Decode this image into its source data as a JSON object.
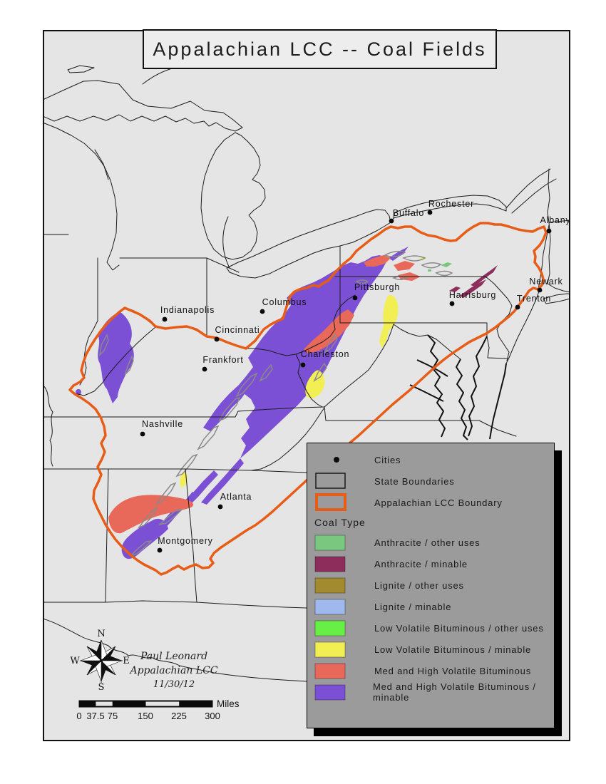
{
  "title": "Appalachian LCC -- Coal Fields",
  "colors": {
    "land": "#E5E5E5",
    "legend_bg": "#9B9B9B",
    "lcc_boundary": "#E75D18",
    "state_line": "#1c1c1c",
    "gray_patch_outline": "#8a8a8a"
  },
  "legend": {
    "cities_label": "Cities",
    "state_boundaries_label": "State Boundaries",
    "lcc_boundary_label": "Appalachian LCC Boundary",
    "coal_type_header": "Coal Type",
    "coal_types": [
      {
        "label": "Anthracite / other uses",
        "color": "#7AC77F"
      },
      {
        "label": "Anthracite / minable",
        "color": "#8C2D5B"
      },
      {
        "label": "Lignite / other uses",
        "color": "#A18A2F"
      },
      {
        "label": "Lignite / minable",
        "color": "#9FB9EE"
      },
      {
        "label": "Low Volatile Bituminous / other uses",
        "color": "#68EF46"
      },
      {
        "label": "Low Volatile Bituminous / minable",
        "color": "#F2EF55"
      },
      {
        "label": "Med and High Volatile Bituminous",
        "color": "#E8695A"
      },
      {
        "label": "Med and High Volatile Bituminous / minable",
        "color": "#7B50D4"
      }
    ]
  },
  "credits": {
    "line1": "Paul Leonard",
    "line2": "Appalachian LCC",
    "line3": "11/30/12"
  },
  "scale_bar": {
    "ticks": [
      "0",
      "37.5",
      "75",
      "150",
      "225",
      "300"
    ],
    "unit": "Miles"
  },
  "compass": {
    "north": "N",
    "south": "S",
    "east": "E",
    "west": "W"
  },
  "cities": [
    {
      "name": "Buffalo",
      "dot": [
        549,
        310
      ],
      "label": [
        573,
        303
      ]
    },
    {
      "name": "Rochester",
      "dot": [
        603,
        298
      ],
      "label": [
        633,
        290
      ]
    },
    {
      "name": "Albany",
      "dot": [
        770,
        324
      ],
      "label": [
        779,
        313
      ]
    },
    {
      "name": "Newark",
      "dot": [
        757,
        407
      ],
      "label": [
        766,
        399
      ]
    },
    {
      "name": "Trenton",
      "dot": [
        726,
        431
      ],
      "label": [
        749,
        423
      ]
    },
    {
      "name": "Pittsburgh",
      "dot": [
        498,
        418
      ],
      "label": [
        529,
        407
      ]
    },
    {
      "name": "Harrisburg",
      "dot": [
        634,
        426
      ],
      "label": [
        663,
        418
      ]
    },
    {
      "name": "Columbus",
      "dot": [
        368,
        437
      ],
      "label": [
        399,
        428
      ]
    },
    {
      "name": "Indianapolis",
      "dot": [
        231,
        448
      ],
      "label": [
        263,
        439
      ]
    },
    {
      "name": "Cincinnati",
      "dot": [
        304,
        476
      ],
      "label": [
        333,
        467
      ]
    },
    {
      "name": "Frankfort",
      "dot": [
        287,
        518
      ],
      "label": [
        313,
        509
      ]
    },
    {
      "name": "Charleston",
      "dot": [
        425,
        512
      ],
      "label": [
        456,
        501
      ]
    },
    {
      "name": "Nashville",
      "dot": [
        200,
        609
      ],
      "label": [
        228,
        599
      ]
    },
    {
      "name": "Atlanta",
      "dot": [
        309,
        711
      ],
      "label": [
        331,
        701
      ]
    },
    {
      "name": "Montgomery",
      "dot": [
        224,
        772
      ],
      "label": [
        260,
        763
      ]
    }
  ]
}
